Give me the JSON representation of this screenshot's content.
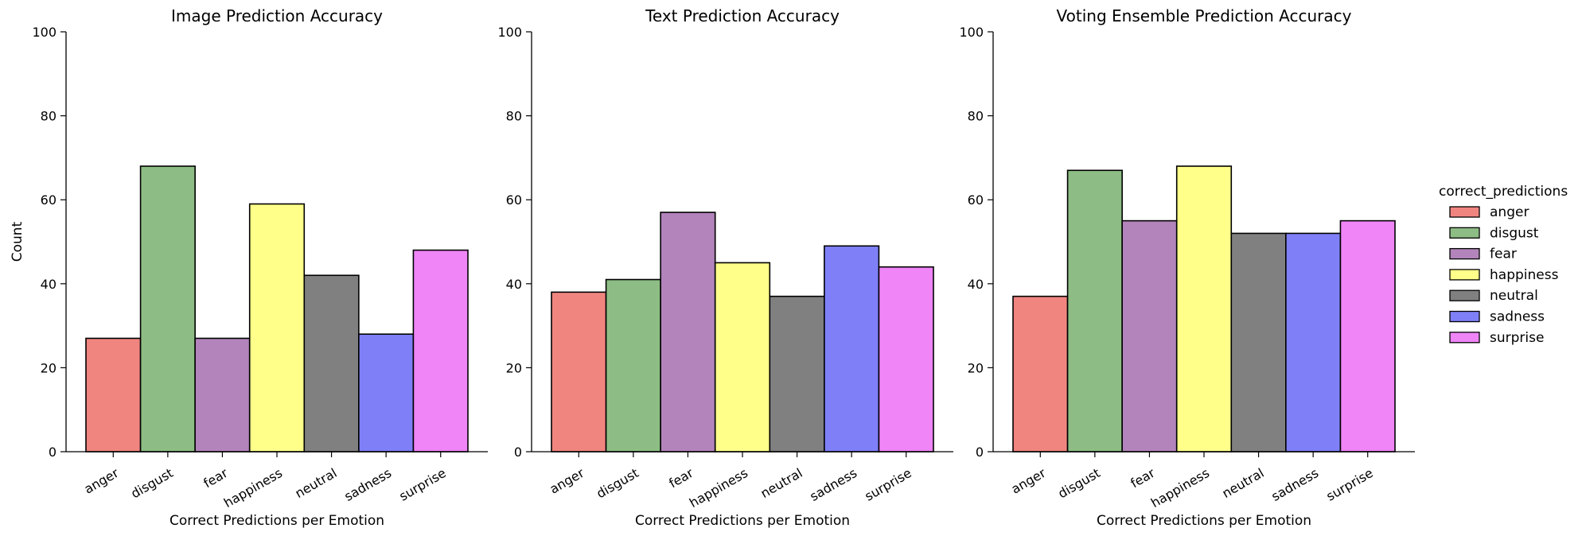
{
  "figure": {
    "ylabel": "Count",
    "xlabel": "Correct Predictions per Emotion"
  },
  "legend": {
    "title": "correct_predictions",
    "placement": "right"
  },
  "chart_data": [
    {
      "type": "bar",
      "title": "Image Prediction Accuracy",
      "xlabel": "Correct Predictions per Emotion",
      "ylabel": "Count",
      "ylim": [
        0,
        100
      ],
      "yticks": [
        0,
        20,
        40,
        60,
        80,
        100
      ],
      "categories": [
        "anger",
        "disgust",
        "fear",
        "happiness",
        "neutral",
        "sadness",
        "surprise"
      ],
      "values": [
        27,
        68,
        27,
        59,
        42,
        28,
        48
      ],
      "grid": false
    },
    {
      "type": "bar",
      "title": "Text Prediction Accuracy",
      "xlabel": "Correct Predictions per Emotion",
      "ylabel": "",
      "ylim": [
        0,
        100
      ],
      "yticks": [
        0,
        20,
        40,
        60,
        80,
        100
      ],
      "categories": [
        "anger",
        "disgust",
        "fear",
        "happiness",
        "neutral",
        "sadness",
        "surprise"
      ],
      "values": [
        38,
        41,
        57,
        45,
        37,
        49,
        44
      ],
      "grid": false
    },
    {
      "type": "bar",
      "title": "Voting Ensemble Prediction Accuracy",
      "xlabel": "Correct Predictions per Emotion",
      "ylabel": "",
      "ylim": [
        0,
        100
      ],
      "yticks": [
        0,
        20,
        40,
        60,
        80,
        100
      ],
      "categories": [
        "anger",
        "disgust",
        "fear",
        "happiness",
        "neutral",
        "sadness",
        "surprise"
      ],
      "values": [
        37,
        67,
        55,
        68,
        52,
        52,
        55
      ],
      "grid": false
    }
  ],
  "series_colors": {
    "anger": "#f08580",
    "disgust": "#8dbd84",
    "fear": "#b384bb",
    "happiness": "#ffff8a",
    "neutral": "#808080",
    "sadness": "#7f80f7",
    "surprise": "#ef85f6"
  }
}
